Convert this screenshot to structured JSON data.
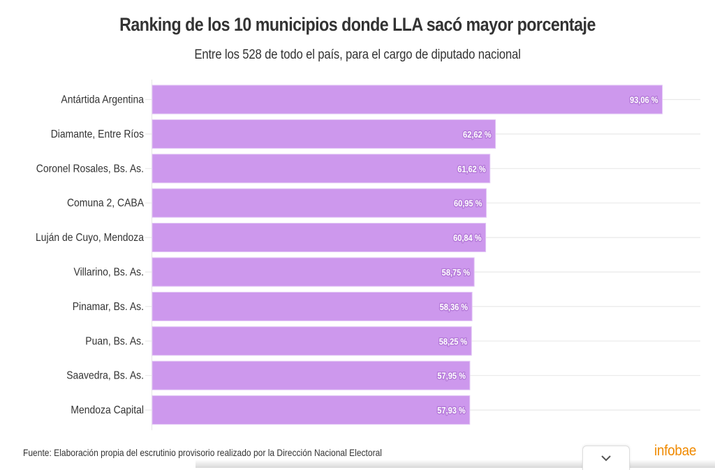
{
  "chart_data": {
    "type": "bar",
    "orientation": "horizontal",
    "title": "Ranking de los 10 municipios donde LLA sacó mayor porcentaje",
    "subtitle": "Entre los 528 de todo el país, para el cargo de diputado nacional",
    "xlabel": "",
    "ylabel": "",
    "xlim": [
      0,
      100
    ],
    "grid": true,
    "legend": "none",
    "bar_color": "#cd98ed",
    "categories": [
      "Antártida Argentina",
      "Diamante, Entre Ríos",
      "Coronel Rosales, Bs. As.",
      "Comuna 2, CABA",
      "Luján de Cuyo, Mendoza",
      "Villarino, Bs. As.",
      "Pinamar, Bs. As.",
      "Puan, Bs. As.",
      "Saavedra, Bs. As.",
      "Mendoza Capital"
    ],
    "values": [
      93.06,
      62.62,
      61.62,
      60.95,
      60.84,
      58.75,
      58.36,
      58.25,
      57.95,
      57.93
    ],
    "value_labels": [
      "93,06 %",
      "62,62 %",
      "61,62 %",
      "60,95 %",
      "60,84 %",
      "58,75 %",
      "58,36 %",
      "58,25 %",
      "57,95 %",
      "57,93 %"
    ]
  },
  "footer": {
    "source": "Fuente: Elaboración propia del escrutinio provisorio realizado por la Dirección Nacional Electoral",
    "brand": "infobae",
    "brand_color": "#f08a00",
    "expand_icon": "chevron-down-icon"
  }
}
